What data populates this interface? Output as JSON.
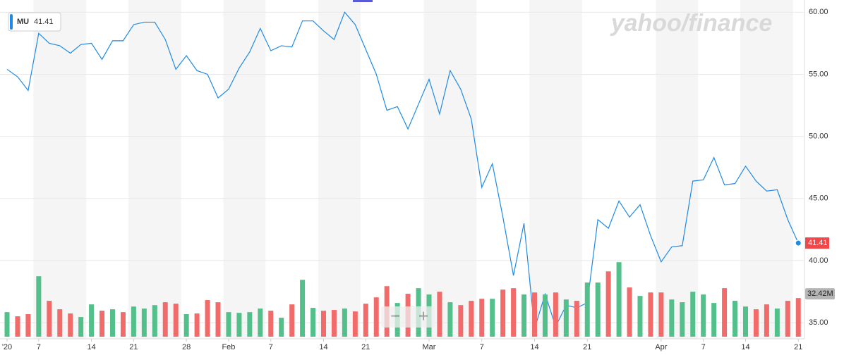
{
  "chart_data": {
    "type": "line",
    "logo": "yahoo/finance",
    "categories": [
      "'20",
      null,
      null,
      "7",
      null,
      null,
      null,
      null,
      "14",
      null,
      null,
      null,
      "21",
      null,
      null,
      null,
      null,
      "28",
      null,
      null,
      null,
      "Feb",
      null,
      null,
      null,
      "7",
      null,
      null,
      null,
      null,
      "14",
      null,
      null,
      null,
      "21",
      null,
      null,
      null,
      null,
      null,
      "Mar",
      null,
      null,
      null,
      null,
      "7",
      null,
      null,
      null,
      null,
      "14",
      null,
      null,
      null,
      null,
      "21",
      null,
      null,
      null,
      null,
      null,
      null,
      "Apr",
      null,
      null,
      null,
      "7",
      null,
      null,
      null,
      "14",
      null,
      null,
      null,
      null,
      "21"
    ],
    "series": [
      {
        "name": "MU",
        "color": "#1f8ae6",
        "last_color": "#f0474b",
        "values": [
          55.4,
          54.8,
          53.7,
          58.3,
          57.5,
          57.3,
          56.7,
          57.4,
          57.5,
          56.2,
          57.7,
          57.7,
          59.0,
          59.2,
          59.2,
          57.8,
          55.4,
          56.5,
          55.3,
          55.0,
          53.1,
          53.8,
          55.5,
          56.8,
          58.7,
          56.9,
          57.3,
          57.2,
          59.3,
          59.3,
          58.5,
          57.8,
          60.0,
          59.0,
          57.0,
          55.0,
          52.1,
          52.4,
          50.6,
          52.6,
          54.6,
          51.8,
          55.3,
          53.8,
          51.4,
          45.9,
          47.8,
          43.5,
          38.8,
          43.0,
          34.5,
          37.3,
          34.7,
          36.4,
          36.2,
          36.6,
          43.3,
          42.6,
          44.8,
          43.5,
          44.5,
          42.0,
          39.9,
          41.1,
          41.2,
          46.4,
          46.5,
          48.3,
          46.1,
          46.2,
          47.6,
          46.4,
          45.6,
          45.7,
          43.3,
          41.41
        ]
      },
      {
        "type": "bar",
        "axis": "y2",
        "tag_color": "#b5b5b5",
        "values": [
          20.6,
          17.1,
          18.9,
          50.7,
          30.1,
          23.0,
          19.5,
          16.5,
          27.1,
          21.8,
          23.0,
          20.6,
          25.3,
          23.6,
          26.5,
          28.9,
          27.7,
          18.9,
          19.5,
          30.7,
          28.9,
          20.6,
          20.0,
          20.6,
          23.6,
          21.8,
          15.9,
          27.1,
          47.7,
          24.2,
          21.8,
          22.4,
          23.6,
          21.2,
          27.7,
          33.0,
          42.4,
          28.3,
          36.0,
          40.7,
          35.4,
          37.7,
          28.9,
          26.5,
          30.1,
          31.8,
          31.8,
          39.5,
          40.7,
          35.4,
          37.1,
          35.4,
          37.1,
          31.2,
          30.1,
          45.4,
          45.4,
          54.8,
          62.5,
          41.3,
          34.2,
          37.1,
          37.1,
          31.2,
          28.9,
          37.7,
          35.4,
          28.3,
          40.7,
          30.1,
          25.3,
          23.0,
          27.1,
          23.6,
          30.1,
          32.42
        ],
        "value_labels": [
          null,
          null,
          null,
          null,
          null,
          null,
          null,
          null,
          null,
          null,
          null,
          null,
          null,
          null,
          null,
          null,
          null,
          null,
          null,
          null,
          null,
          null,
          null,
          null,
          null,
          null,
          null,
          null,
          null,
          null,
          null,
          null,
          null,
          null,
          null,
          null,
          null,
          null,
          null,
          null,
          null,
          null,
          null,
          null,
          null,
          null,
          null,
          null,
          null,
          null,
          null,
          null,
          null,
          null,
          null,
          null,
          null,
          null,
          null,
          null,
          null,
          null,
          null,
          null,
          null,
          null,
          null,
          null,
          null,
          null,
          null,
          null,
          null,
          null,
          null,
          "32.42M"
        ],
        "colors": [
          "#53c08b",
          "#f26b6b",
          "#f26b6b",
          "#53c08b",
          "#f26b6b",
          "#f26b6b",
          "#f26b6b",
          "#53c08b",
          "#53c08b",
          "#f26b6b",
          "#53c08b",
          "#f26b6b",
          "#53c08b",
          "#53c08b",
          "#53c08b",
          "#f26b6b",
          "#f26b6b",
          "#53c08b",
          "#f26b6b",
          "#f26b6b",
          "#f26b6b",
          "#53c08b",
          "#53c08b",
          "#53c08b",
          "#53c08b",
          "#f26b6b",
          "#53c08b",
          "#f26b6b",
          "#53c08b",
          "#53c08b",
          "#f26b6b",
          "#f26b6b",
          "#53c08b",
          "#f26b6b",
          "#f26b6b",
          "#f26b6b",
          "#f26b6b",
          "#53c08b",
          "#f26b6b",
          "#53c08b",
          "#53c08b",
          "#f26b6b",
          "#53c08b",
          "#f26b6b",
          "#f26b6b",
          "#f26b6b",
          "#53c08b",
          "#f26b6b",
          "#f26b6b",
          "#53c08b",
          "#f26b6b",
          "#53c08b",
          "#f26b6b",
          "#53c08b",
          "#f26b6b",
          "#53c08b",
          "#53c08b",
          "#f26b6b",
          "#53c08b",
          "#f26b6b",
          "#53c08b",
          "#f26b6b",
          "#f26b6b",
          "#53c08b",
          "#53c08b",
          "#53c08b",
          "#53c08b",
          "#53c08b",
          "#f26b6b",
          "#53c08b",
          "#53c08b",
          "#f26b6b",
          "#f26b6b",
          "#53c08b",
          "#f26b6b",
          "#f26b6b"
        ]
      }
    ],
    "ylim": [
      33.7,
      60.7
    ],
    "yticks": [
      {
        "value": 35,
        "label": "35.00"
      },
      {
        "value": 40,
        "label": "40.00"
      },
      {
        "value": 45,
        "label": "45.00"
      },
      {
        "value": 50,
        "label": "50.00"
      },
      {
        "value": 55,
        "label": "55.00"
      },
      {
        "value": 60,
        "label": "60.00"
      }
    ],
    "y2lim": [
      0,
      65
    ],
    "grid": true
  }
}
